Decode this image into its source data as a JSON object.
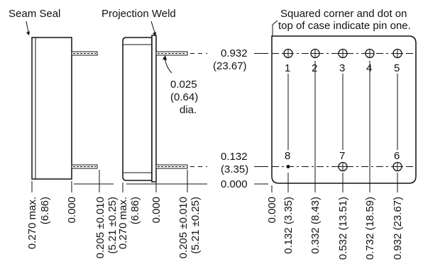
{
  "labels": {
    "seam_seal": "Seam Seal",
    "projection_weld": "Projection Weld",
    "note_line1": "Squared corner and dot on",
    "note_line2": "top of case indicate pin one.",
    "lead_dia_in": "0.025",
    "lead_dia_mm": "(0.64)",
    "lead_dia_suffix": "dia."
  },
  "vertical_dims": {
    "top_in": "0.932",
    "top_mm": "(23.67)",
    "bottom_in": "0.132",
    "bottom_mm": "(3.35)",
    "zero": "0.000"
  },
  "pins": [
    {
      "number": "1",
      "row": "top"
    },
    {
      "number": "2",
      "row": "top"
    },
    {
      "number": "3",
      "row": "top"
    },
    {
      "number": "4",
      "row": "top"
    },
    {
      "number": "5",
      "row": "top"
    },
    {
      "number": "8",
      "row": "bottom"
    },
    {
      "number": "7",
      "row": "bottom"
    },
    {
      "number": "6",
      "row": "bottom"
    }
  ],
  "bottom_dims": {
    "seam_width": "0.270 max.",
    "seam_width_mm": "(6.86)",
    "seam_zero": "0.000",
    "seam_lead": "0.205 ±0.010",
    "seam_lead_mm": "(5.21 ±0.25)",
    "proj_width": "0.270 max.",
    "proj_width_mm": "(6.86)",
    "proj_zero": "0.000",
    "proj_lead": "0.205 ±0.010",
    "proj_lead_mm": "(5.21 ±0.25)",
    "top_zero": "0.000",
    "x1": "0.132 (3.35)",
    "x2": "0.332 (8.43)",
    "x3": "0.532 (13.51)",
    "x4": "0.732 (18.59)",
    "x5": "0.932 (23.67)"
  },
  "colors": {
    "ink": "#111111",
    "case_fill": "#ffffff"
  }
}
